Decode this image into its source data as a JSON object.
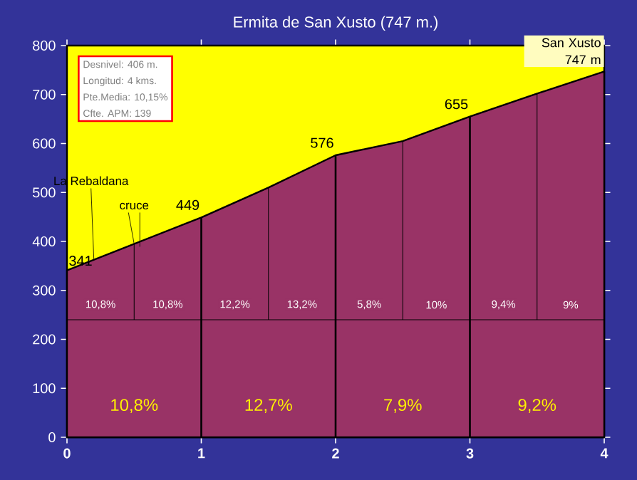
{
  "chart_data": {
    "type": "area",
    "title": "Ermita de San Xusto (747 m.)",
    "x": [
      0,
      0.5,
      1,
      1.5,
      2,
      2.5,
      3,
      3.5,
      4
    ],
    "series": [
      {
        "color": "#993366",
        "values": [
          341,
          395,
          449,
          510,
          576,
          605,
          655,
          702,
          747
        ],
        "value_labels": [
          "341",
          null,
          "449",
          null,
          "576",
          null,
          "655",
          null,
          null
        ]
      }
    ],
    "xlim": [
      0,
      4
    ],
    "xticks": [
      0,
      1,
      2,
      3,
      4
    ],
    "ylim": [
      0,
      800
    ],
    "yticks": [
      0,
      100,
      200,
      300,
      400,
      500,
      600,
      700,
      800
    ],
    "grid": false,
    "marker": "none",
    "ref_lines": [
      {
        "axis": "x",
        "value": 0.5,
        "color": "#000000"
      },
      {
        "axis": "x",
        "value": 1,
        "color": "#000000"
      },
      {
        "axis": "x",
        "value": 1.5,
        "color": "#000000"
      },
      {
        "axis": "x",
        "value": 2,
        "color": "#000000"
      },
      {
        "axis": "x",
        "value": 2.5,
        "color": "#000000"
      },
      {
        "axis": "x",
        "value": 3,
        "color": "#000000"
      },
      {
        "axis": "x",
        "value": 3.5,
        "color": "#000000"
      },
      {
        "axis": "y",
        "value": 240,
        "color": "#000000"
      }
    ],
    "annotations": [
      "Desnivel: 406 m.",
      "Longitud: 4 kms.",
      "Pte.Media: 10,15%",
      "Cfte. APM: 139",
      {
        "text": "La Rebaldana",
        "x": 0.2,
        "y": 363
      },
      {
        "text": "cruce",
        "x": 0.5,
        "y": 395
      },
      "10,8%",
      "10,8%",
      "12,2%",
      "13,2%",
      "5,8%",
      "10%",
      "9,4%",
      "9%",
      "10,8%",
      "12,7%",
      "7,9%",
      "9,2%",
      {
        "text": "San Xusto 747 m",
        "x": 4,
        "y": 747
      }
    ]
  }
}
